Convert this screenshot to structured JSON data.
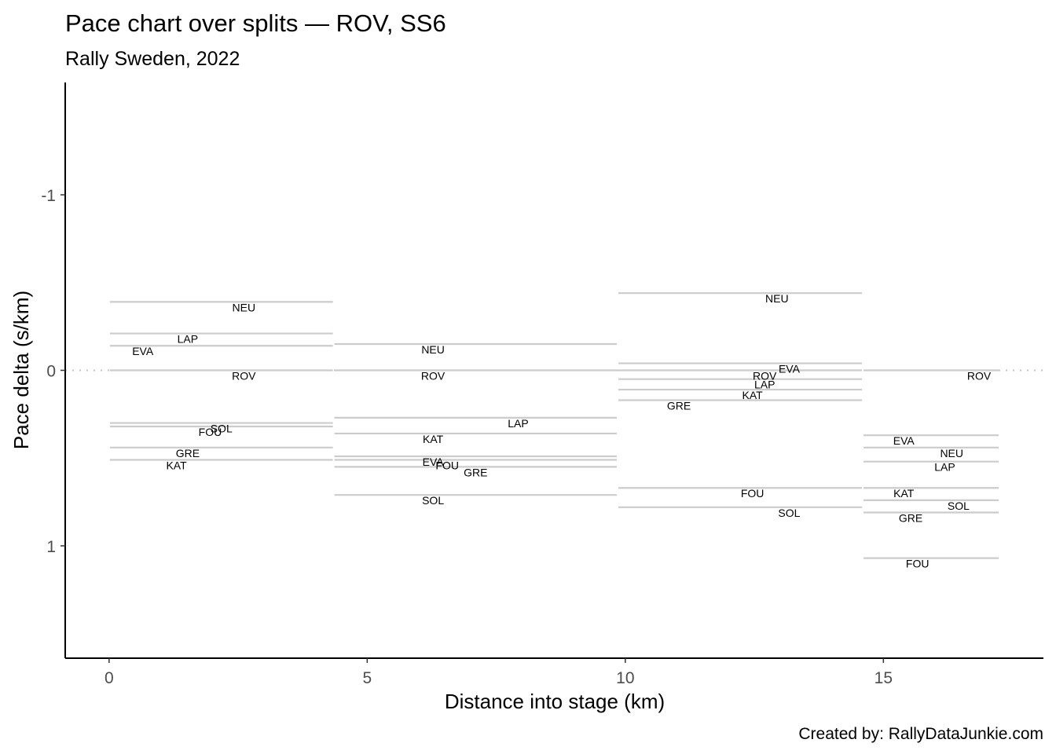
{
  "chart_data": {
    "type": "line",
    "title": "Pace chart over splits — ROV, SS6",
    "subtitle": "Rally Sweden, 2022",
    "xlabel": "Distance into stage (km)",
    "ylabel": "Pace delta (s/km)",
    "caption": "Created by: RallyDataJunkie.com",
    "xlim": [
      -0.85,
      18.1
    ],
    "ylim": [
      -1.64,
      1.64
    ],
    "y_reversed": true,
    "x_ticks": [
      0,
      5,
      10,
      15
    ],
    "x_tick_labels": [
      "0",
      "5",
      "10",
      "15"
    ],
    "y_ticks": [
      -1,
      0,
      1
    ],
    "y_tick_labels": [
      "-1",
      "0",
      "1"
    ],
    "reference_line": 0,
    "splits": [
      {
        "start": 0,
        "end": 4.35,
        "label_x": 0.5
      },
      {
        "start": 4.35,
        "end": 9.85,
        "label_x": 0.55
      },
      {
        "start": 9.85,
        "end": 14.6,
        "label_x": 0.5
      },
      {
        "start": 14.6,
        "end": 17.25,
        "label_x": 0.5
      }
    ],
    "series": [
      {
        "name": "NEU",
        "values": [
          -0.39,
          -0.15,
          -0.44,
          0.44
        ]
      },
      {
        "name": "LAP",
        "values": [
          -0.21,
          0.27,
          0.05,
          0.52
        ]
      },
      {
        "name": "EVA",
        "values": [
          -0.14,
          0.49,
          -0.04,
          0.37
        ]
      },
      {
        "name": "ROV",
        "values": [
          0,
          0,
          0,
          0
        ]
      },
      {
        "name": "SOL",
        "values": [
          0.3,
          0.71,
          0.78,
          0.74
        ]
      },
      {
        "name": "FOU",
        "values": [
          0.32,
          0.51,
          0.67,
          1.07
        ]
      },
      {
        "name": "GRE",
        "values": [
          0.44,
          0.55,
          0.17,
          0.81
        ]
      },
      {
        "name": "KAT",
        "values": [
          0.51,
          0.36,
          0.11,
          0.67
        ]
      }
    ],
    "label_offsets": [
      [
        0.1,
        -0.2,
        0.15,
        0.15
      ],
      [
        -0.15,
        0.1,
        0.1,
        0.1
      ],
      [
        -0.35,
        -0.2,
        0.2,
        -0.2
      ],
      [
        0.1,
        -0.2,
        0.1,
        0.35
      ],
      [
        0,
        -0.2,
        0.2,
        0.2
      ],
      [
        -0.05,
        -0.15,
        0.05,
        -0.1
      ],
      [
        -0.15,
        -0.05,
        -0.25,
        -0.15
      ],
      [
        -0.2,
        -0.2,
        0.05,
        -0.2
      ]
    ],
    "line_color": "#cccccc",
    "reference_color": "#c4c4c4"
  }
}
